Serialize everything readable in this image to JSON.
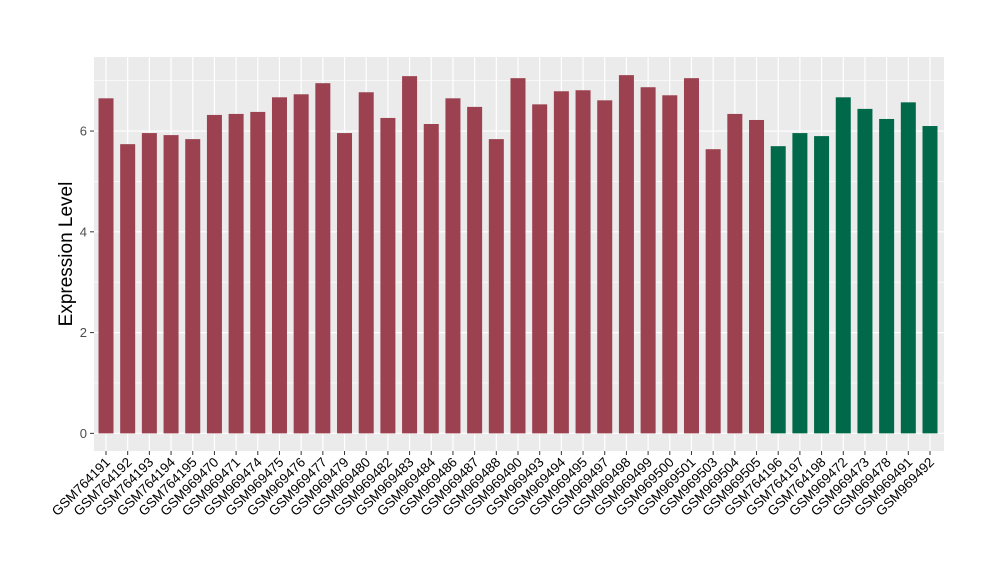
{
  "chart_data": {
    "type": "bar",
    "title": "",
    "xlabel": "",
    "ylabel": "Expression Level",
    "ylim": [
      -0.35,
      7.47
    ],
    "yticks": [
      0,
      2,
      4,
      6
    ],
    "grid": true,
    "legend": "none",
    "categories": [
      "GSM764191",
      "GSM764192",
      "GSM764193",
      "GSM764194",
      "GSM764195",
      "GSM969470",
      "GSM969471",
      "GSM969474",
      "GSM969475",
      "GSM969476",
      "GSM969477",
      "GSM969479",
      "GSM969480",
      "GSM969482",
      "GSM969483",
      "GSM969484",
      "GSM969486",
      "GSM969487",
      "GSM969488",
      "GSM969490",
      "GSM969493",
      "GSM969494",
      "GSM969495",
      "GSM969497",
      "GSM969498",
      "GSM969499",
      "GSM969500",
      "GSM969501",
      "GSM969503",
      "GSM969504",
      "GSM969505",
      "GSM764196",
      "GSM764197",
      "GSM764198",
      "GSM969472",
      "GSM969473",
      "GSM969478",
      "GSM969491",
      "GSM969492"
    ],
    "values": [
      6.65,
      5.74,
      5.96,
      5.92,
      5.84,
      6.32,
      6.34,
      6.38,
      6.67,
      6.73,
      6.95,
      5.96,
      6.77,
      6.26,
      7.09,
      6.14,
      6.65,
      6.48,
      5.84,
      7.05,
      6.53,
      6.79,
      6.81,
      6.61,
      7.11,
      6.87,
      6.71,
      7.05,
      5.64,
      6.34,
      6.22,
      5.7,
      5.96,
      5.9,
      6.67,
      6.44,
      6.24,
      6.57,
      6.1
    ],
    "groups": [
      "a",
      "a",
      "a",
      "a",
      "a",
      "a",
      "a",
      "a",
      "a",
      "a",
      "a",
      "a",
      "a",
      "a",
      "a",
      "a",
      "a",
      "a",
      "a",
      "a",
      "a",
      "a",
      "a",
      "a",
      "a",
      "a",
      "a",
      "a",
      "a",
      "a",
      "a",
      "b",
      "b",
      "b",
      "b",
      "b",
      "b",
      "b",
      "b"
    ],
    "colors": {
      "a": "#9B4150",
      "b": "#00694A"
    }
  }
}
